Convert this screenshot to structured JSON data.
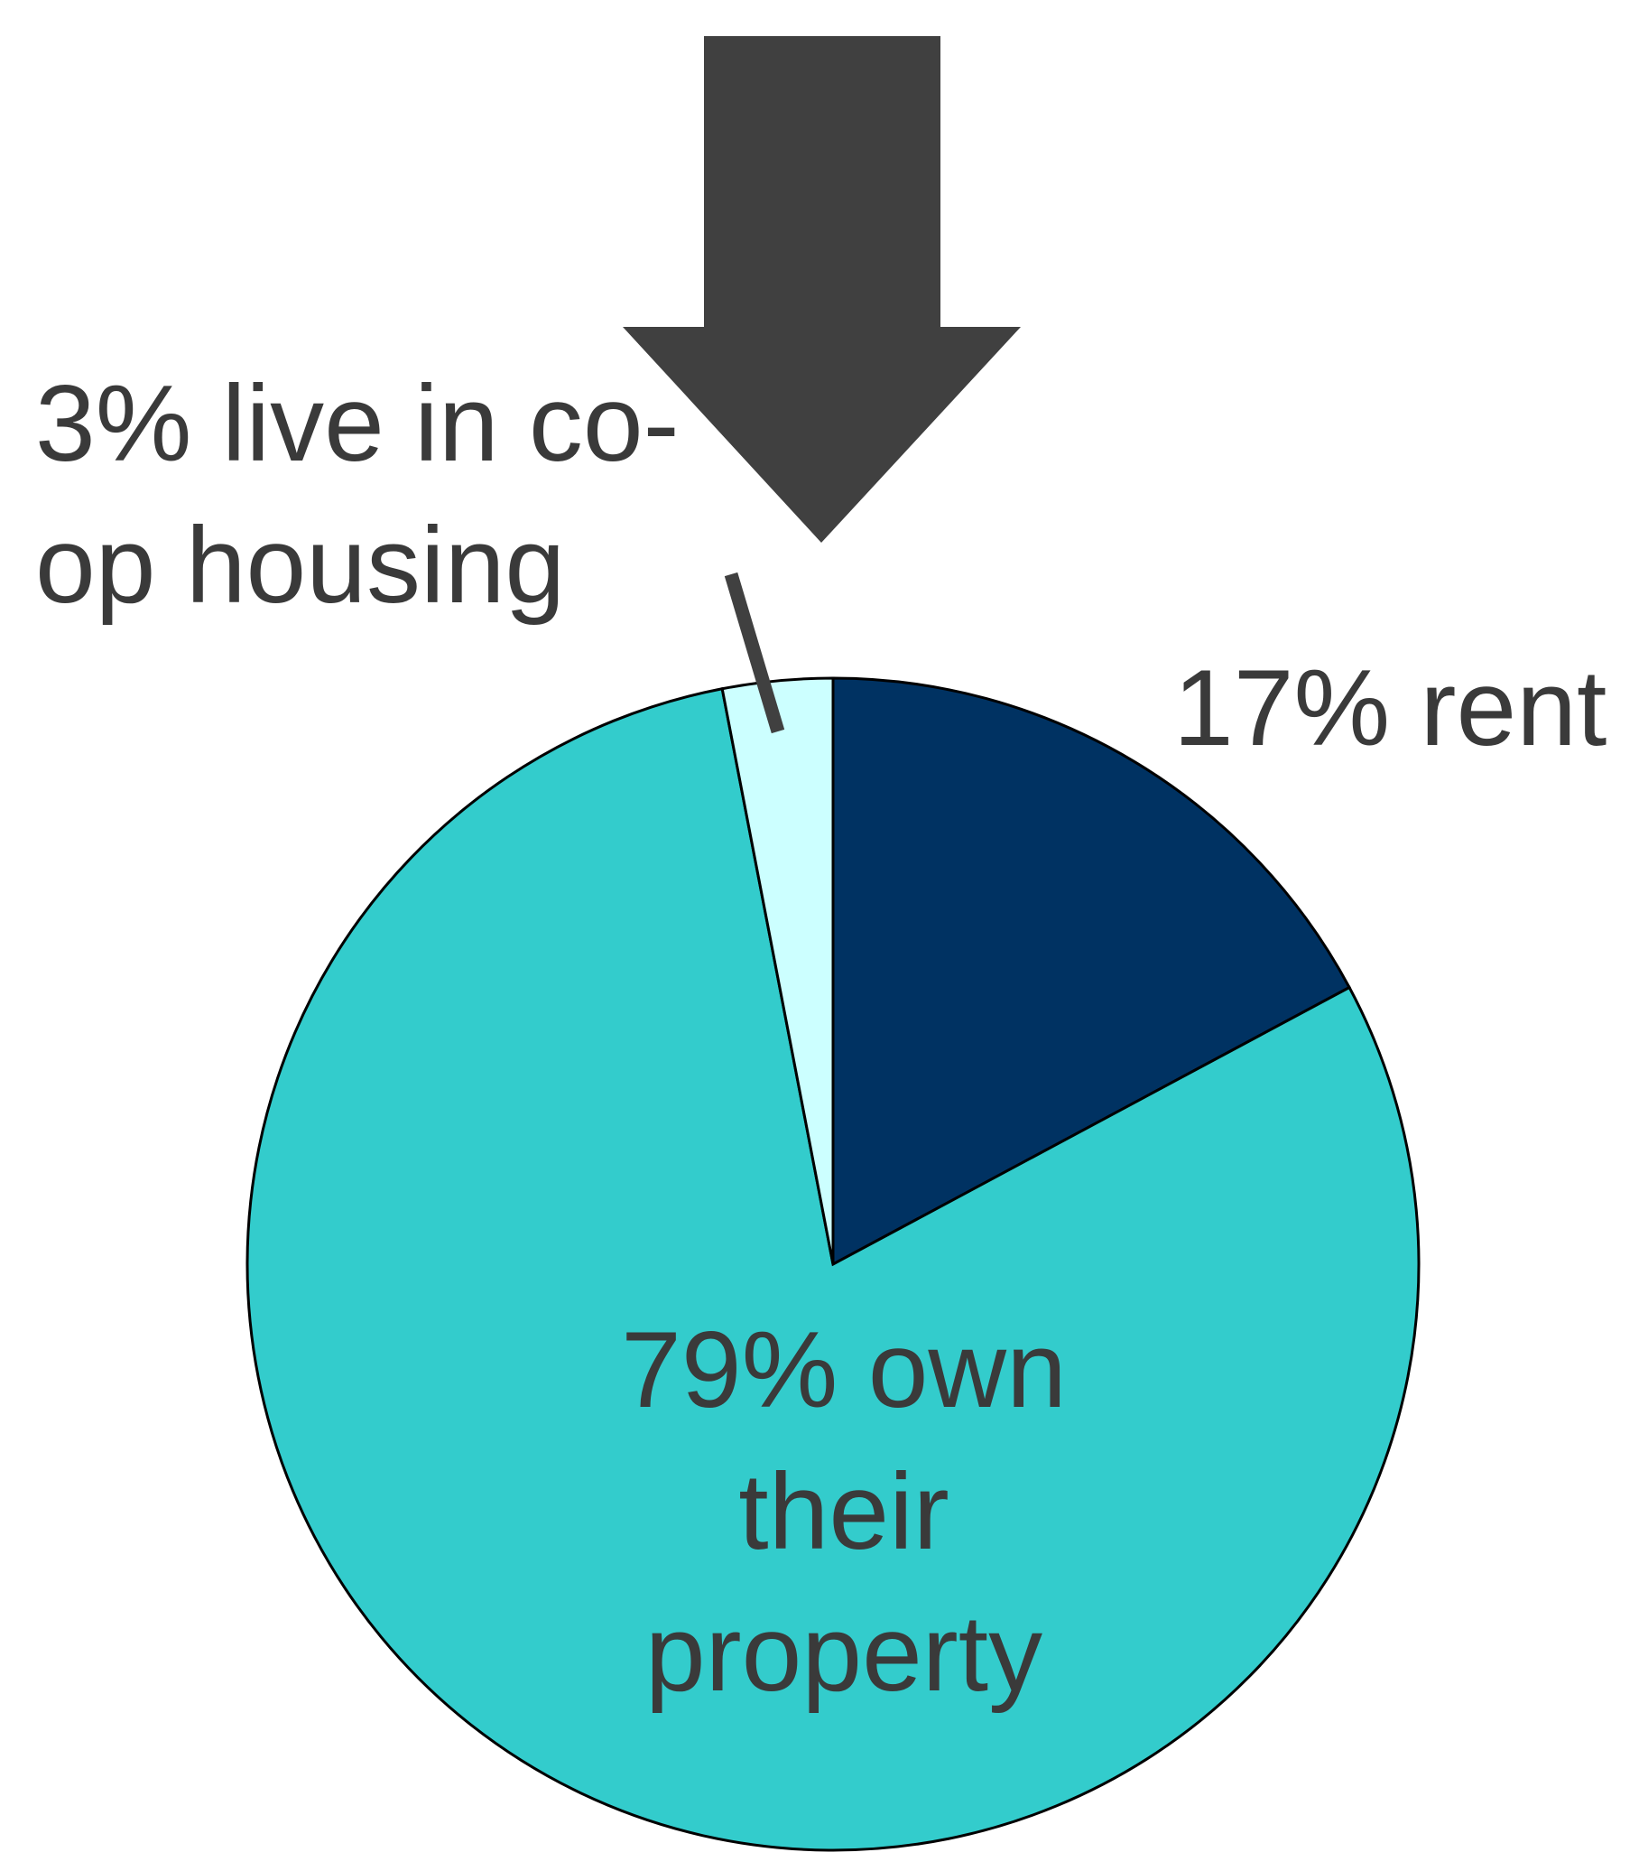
{
  "chart_data": {
    "type": "pie",
    "categories": [
      "rent",
      "own their property",
      "live in co-op housing"
    ],
    "values": [
      17,
      79,
      3
    ],
    "value_labels": [
      "17%",
      "79%",
      "3%"
    ],
    "colors": [
      "#003262",
      "#33cccc",
      "#ccffff"
    ]
  }
}
